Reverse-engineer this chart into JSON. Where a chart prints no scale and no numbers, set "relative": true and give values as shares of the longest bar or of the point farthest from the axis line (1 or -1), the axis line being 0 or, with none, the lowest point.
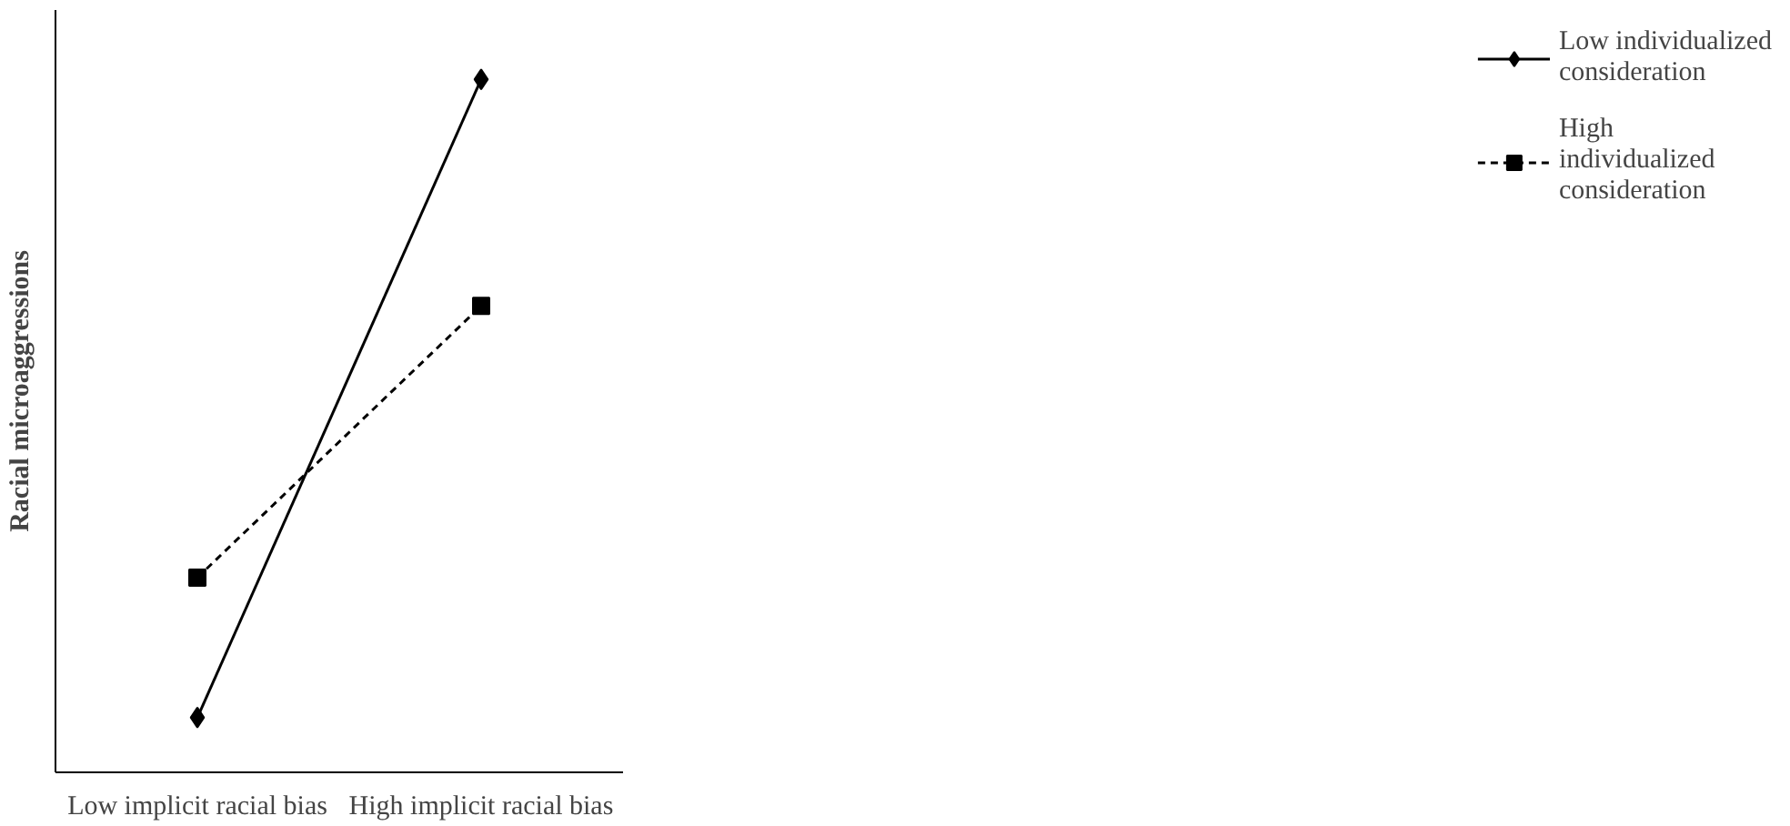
{
  "chart_data": {
    "type": "line",
    "relative": true,
    "ylabel": "Racial microaggressions",
    "categories": [
      "Low implicit racial bias",
      "High implicit racial bias"
    ],
    "series": [
      {
        "name": "Low individualized consideration",
        "color": "#000000",
        "values": [
          0.079,
          1
        ],
        "marker": "diamond",
        "line_style": "solid"
      },
      {
        "name": "High individualized consideration",
        "color": "#000000",
        "values": [
          0.281,
          0.673
        ],
        "marker": "square",
        "line_style": "dashed"
      }
    ],
    "legend": "right",
    "grid": false
  }
}
